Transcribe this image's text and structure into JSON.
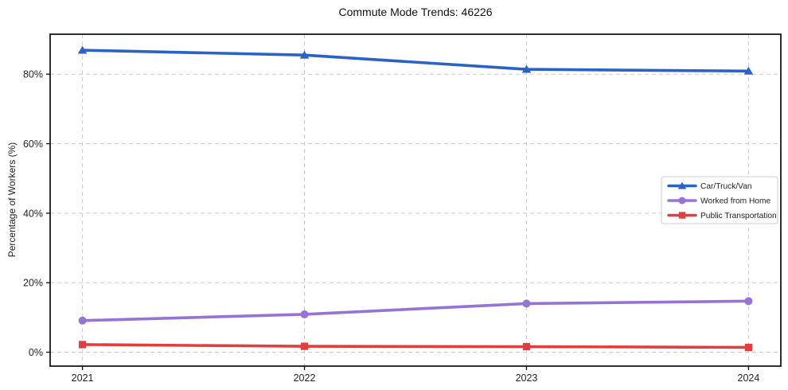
{
  "figure": {
    "title": "Commute Mode Trends: 46226",
    "ylabel": "Percentage of Workers (%)"
  },
  "chart_data": {
    "type": "line",
    "title": "Commute Mode Trends: 46226",
    "xlabel": "",
    "ylabel": "Percentage of Workers (%)",
    "x": [
      2021,
      2022,
      2023,
      2024
    ],
    "x_tick_labels": [
      "2021",
      "2022",
      "2023",
      "2024"
    ],
    "y_ticks": [
      0,
      20,
      40,
      60,
      80
    ],
    "y_tick_labels": [
      "0%",
      "20%",
      "40%",
      "60%",
      "80%"
    ],
    "ylim": [
      -4,
      91.5
    ],
    "grid": "dashed, both axes",
    "legend_position": "center right",
    "series": [
      {
        "name": "Car/Truck/Van",
        "marker": "triangle",
        "color": "#2b62c5",
        "values": [
          86.9,
          85.5,
          81.4,
          80.9
        ]
      },
      {
        "name": "Worked from Home",
        "marker": "circle",
        "color": "#9673d6",
        "values": [
          9.1,
          10.9,
          14.0,
          14.7
        ]
      },
      {
        "name": "Public Transportation",
        "marker": "square",
        "color": "#e33e3e",
        "values": [
          2.2,
          1.7,
          1.6,
          1.4
        ]
      }
    ],
    "grid_color": "#cbcbcb",
    "spine_color": "#1a1a1a"
  }
}
